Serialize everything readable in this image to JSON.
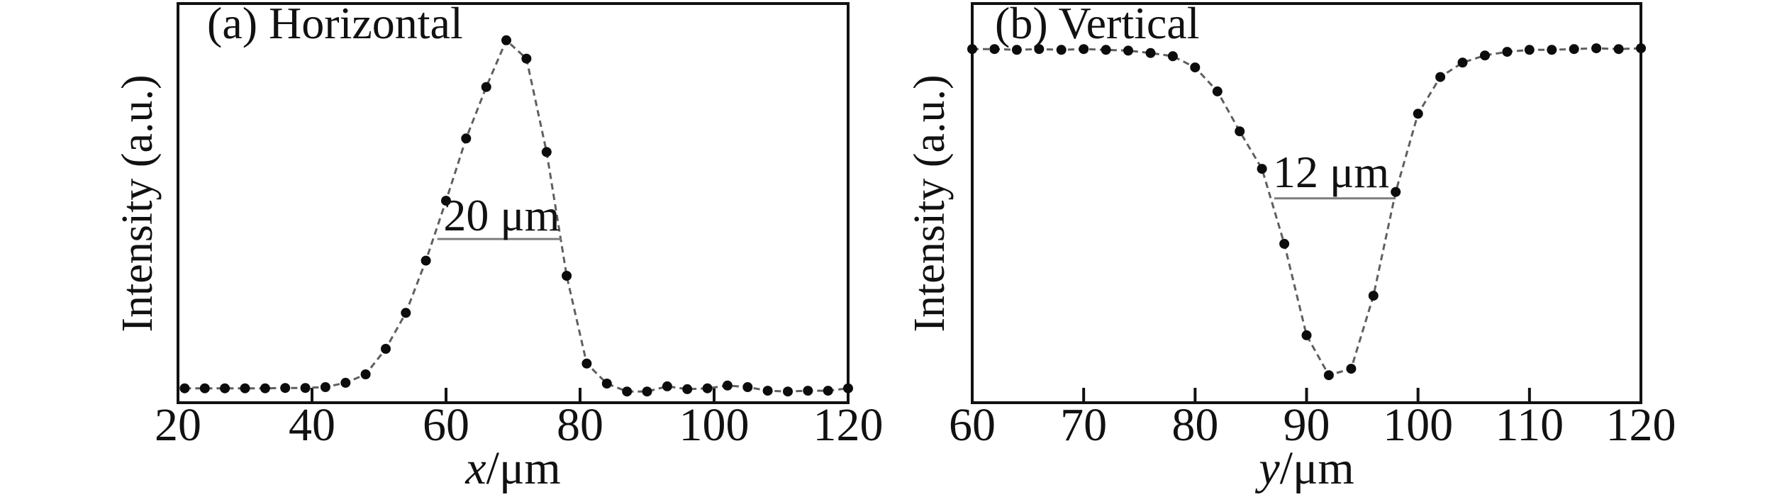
{
  "figure": {
    "background": "#ffffff",
    "axis_color": "#111111",
    "curve_color": "#5f5f5f",
    "marker_color": "#0c0c0c",
    "annotation_line_color": "#7d7d7d",
    "text_color": "#111111"
  },
  "chart_data": [
    {
      "type": "line",
      "panel_label": "(a) Horizontal",
      "ylabel": "Intensity (a.u.)",
      "xlabel": {
        "variable": "x",
        "unit": "/μm"
      },
      "xlim": [
        20,
        120
      ],
      "xticks": [
        20,
        40,
        60,
        80,
        100,
        120
      ],
      "ylim": [
        0,
        1
      ],
      "yticks": [],
      "grid": false,
      "legend": "none",
      "marker": "dot",
      "x": [
        21,
        24,
        27,
        30,
        33,
        36,
        39,
        42,
        45,
        48,
        51,
        54,
        57,
        60,
        63,
        66,
        69,
        72,
        75,
        78,
        81,
        84,
        87,
        90,
        93,
        96,
        99,
        102,
        105,
        108,
        111,
        114,
        117,
        120
      ],
      "y": [
        0.036,
        0.036,
        0.036,
        0.036,
        0.036,
        0.037,
        0.037,
        0.039,
        0.05,
        0.071,
        0.135,
        0.225,
        0.356,
        0.506,
        0.662,
        0.791,
        0.908,
        0.862,
        0.628,
        0.318,
        0.098,
        0.048,
        0.028,
        0.028,
        0.041,
        0.034,
        0.036,
        0.043,
        0.039,
        0.03,
        0.028,
        0.03,
        0.03,
        0.036
      ],
      "annotation": {
        "label": "20 μm",
        "line_x_start": 58.7,
        "line_x_end": 77.2,
        "line_y": 0.41,
        "label_x": 68.3,
        "label_y": 0.432
      }
    },
    {
      "type": "line",
      "panel_label": "(b) Vertical",
      "ylabel": "Intensity (a.u.)",
      "xlabel": {
        "variable": "y",
        "unit": "/μm"
      },
      "xlim": [
        60,
        120
      ],
      "xticks": [
        60,
        70,
        80,
        90,
        100,
        110,
        120
      ],
      "ylim": [
        0,
        1
      ],
      "yticks": [],
      "grid": false,
      "legend": "none",
      "marker": "dot",
      "x": [
        60,
        62,
        64,
        66,
        68,
        70,
        72,
        74,
        76,
        78,
        80,
        82,
        84,
        86,
        88,
        90,
        92,
        94,
        96,
        98,
        100,
        102,
        104,
        106,
        108,
        110,
        112,
        114,
        116,
        118,
        120
      ],
      "y": [
        0.886,
        0.886,
        0.884,
        0.886,
        0.884,
        0.886,
        0.884,
        0.882,
        0.876,
        0.868,
        0.84,
        0.78,
        0.68,
        0.586,
        0.398,
        0.169,
        0.069,
        0.085,
        0.268,
        0.528,
        0.724,
        0.816,
        0.852,
        0.87,
        0.879,
        0.884,
        0.884,
        0.886,
        0.888,
        0.886,
        0.888
      ],
      "annotation": {
        "label": "12 μm",
        "line_x_start": 87.1,
        "line_x_end": 98.0,
        "line_y": 0.512,
        "label_x": 92.2,
        "label_y": 0.54
      }
    }
  ]
}
